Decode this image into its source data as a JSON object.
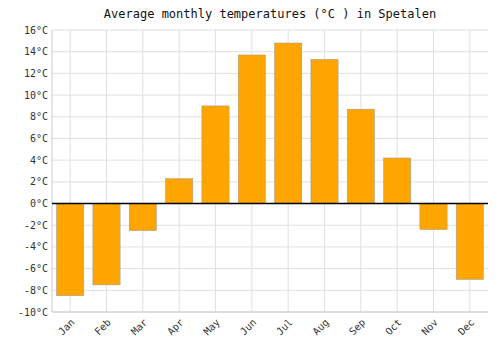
{
  "chart_data": {
    "type": "bar",
    "title": "Average monthly temperatures (°C ) in Spetalen",
    "categories": [
      "Jan",
      "Feb",
      "Mar",
      "Apr",
      "May",
      "Jun",
      "Jul",
      "Aug",
      "Sep",
      "Oct",
      "Nov",
      "Dec"
    ],
    "values": [
      -8.5,
      -7.5,
      -2.5,
      2.3,
      9.0,
      13.7,
      14.8,
      13.3,
      8.7,
      4.2,
      -2.4,
      -7.0
    ],
    "color": "#FFA500",
    "ylim": [
      -10,
      16
    ],
    "yticks": [
      {
        "value": -10,
        "label": "-10°C"
      },
      {
        "value": -8,
        "label": "-8°C"
      },
      {
        "value": -6,
        "label": "-6°C"
      },
      {
        "value": -4,
        "label": "-4°C"
      },
      {
        "value": -2,
        "label": "-2°C"
      },
      {
        "value": 0,
        "label": "0°C"
      },
      {
        "value": 2,
        "label": "2°C"
      },
      {
        "value": 4,
        "label": "4°C"
      },
      {
        "value": 6,
        "label": "6°C"
      },
      {
        "value": 8,
        "label": "8°C"
      },
      {
        "value": 10,
        "label": "10°C"
      },
      {
        "value": 12,
        "label": "12°C"
      },
      {
        "value": 14,
        "label": "14°C"
      },
      {
        "value": 16,
        "label": "16°C"
      }
    ],
    "grid": true
  }
}
